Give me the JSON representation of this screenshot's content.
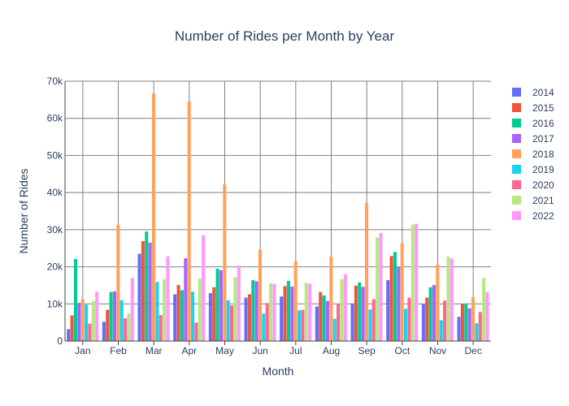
{
  "chart_data": {
    "type": "bar",
    "title": "Number of Rides per Month by Year",
    "xlabel": "Month",
    "ylabel": "Number of Rides",
    "categories": [
      "Jan",
      "Feb",
      "Mar",
      "Apr",
      "May",
      "Jun",
      "Jul",
      "Aug",
      "Sep",
      "Oct",
      "Nov",
      "Dec"
    ],
    "ylim": [
      0,
      70000
    ],
    "yticks": [
      0,
      10000,
      20000,
      30000,
      40000,
      50000,
      60000,
      70000
    ],
    "ytick_labels": [
      "0",
      "10k",
      "20k",
      "30k",
      "40k",
      "50k",
      "60k",
      "70k"
    ],
    "grid": true,
    "legend_position": "right",
    "series": [
      {
        "name": "2014",
        "color": "#636efa",
        "values": [
          3200,
          5200,
          23500,
          12600,
          12900,
          11700,
          12000,
          9300,
          10100,
          16400,
          9900,
          6500
        ]
      },
      {
        "name": "2015",
        "color": "#EF553B",
        "values": [
          6900,
          8400,
          26900,
          15100,
          14500,
          12600,
          14800,
          13200,
          14900,
          22900,
          11700,
          10000
        ]
      },
      {
        "name": "2016",
        "color": "#00cc96",
        "values": [
          22100,
          13200,
          29500,
          13700,
          19500,
          16400,
          16200,
          12300,
          15800,
          24000,
          14500,
          10100
        ]
      },
      {
        "name": "2017",
        "color": "#ab63fa",
        "values": [
          10300,
          13400,
          26500,
          22300,
          19100,
          16100,
          14700,
          10800,
          14600,
          19900,
          15100,
          8800
        ]
      },
      {
        "name": "2018",
        "color": "#FFA15A",
        "values": [
          11300,
          31300,
          66700,
          64500,
          42200,
          24600,
          21500,
          22700,
          37200,
          26400,
          20600,
          11800
        ]
      },
      {
        "name": "2019",
        "color": "#19d3f3",
        "values": [
          9800,
          11000,
          15900,
          13300,
          11000,
          7400,
          8300,
          6000,
          8500,
          8700,
          5600,
          4800
        ]
      },
      {
        "name": "2020",
        "color": "#FF6692",
        "values": [
          4700,
          6100,
          7000,
          5000,
          9600,
          10200,
          8400,
          10000,
          11300,
          11700,
          10900,
          7800
        ]
      },
      {
        "name": "2021",
        "color": "#B6E880",
        "values": [
          10800,
          7400,
          16700,
          16800,
          17200,
          15600,
          15700,
          16600,
          27900,
          31400,
          22800,
          17000
        ]
      },
      {
        "name": "2022",
        "color": "#FF97FF",
        "values": [
          13300,
          17000,
          22800,
          28500,
          20300,
          15400,
          15400,
          18000,
          29100,
          31600,
          22200,
          13200
        ]
      }
    ]
  }
}
